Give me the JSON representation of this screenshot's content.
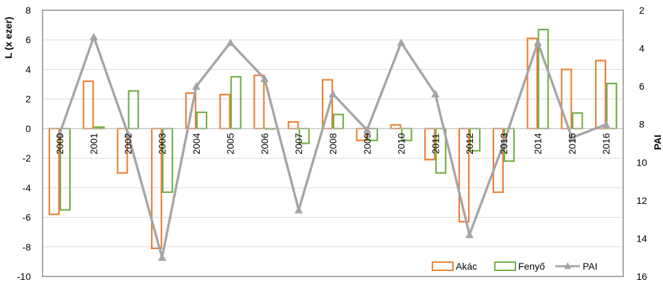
{
  "chart_data": {
    "type": "bar",
    "categories": [
      "2000",
      "2001",
      "2002",
      "2003",
      "2004",
      "2005",
      "2006",
      "2007",
      "2008",
      "2009",
      "2010",
      "2011",
      "2012",
      "2013",
      "2014",
      "2015",
      "2016"
    ],
    "series": [
      {
        "name": "Akác",
        "type": "bar",
        "axis": "left",
        "color": "#ED7D31",
        "values": [
          -5.8,
          3.2,
          -3.0,
          -8.1,
          2.4,
          2.3,
          3.6,
          0.45,
          3.3,
          -0.8,
          0.25,
          -2.1,
          -6.3,
          -4.3,
          6.1,
          4.0,
          4.6
        ]
      },
      {
        "name": "Fenyő",
        "type": "bar",
        "axis": "left",
        "color": "#70AD47",
        "values": [
          -5.5,
          0.1,
          2.55,
          -4.3,
          1.1,
          3.5,
          0.0,
          -1.0,
          0.95,
          -0.8,
          -0.8,
          -3.0,
          -1.5,
          -2.2,
          6.7,
          1.05,
          3.05
        ]
      },
      {
        "name": "PAI",
        "type": "line",
        "axis": "right",
        "color": "#A5A5A5",
        "marker": "triangle",
        "values": [
          8.5,
          3.4,
          8.5,
          15.0,
          6.0,
          3.7,
          5.6,
          12.5,
          6.4,
          8.3,
          3.7,
          6.4,
          13.8,
          9.0,
          3.7,
          8.7,
          8.0
        ]
      }
    ],
    "ylabel": "L (x ezer)",
    "y2label": "PAI",
    "ylim": [
      -10,
      8
    ],
    "yticks": [
      "8",
      "6",
      "4",
      "2",
      "0",
      "-2",
      "-4",
      "-6",
      "-8",
      "-10"
    ],
    "y2lim": [
      2,
      16
    ],
    "y2_inverted": true,
    "y2ticks": [
      "2",
      "4",
      "6",
      "8",
      "10",
      "12",
      "14",
      "16"
    ],
    "grid": true,
    "legend_position": "bottom-right",
    "legend": [
      "Akác",
      "Fenyő",
      "PAI"
    ]
  }
}
